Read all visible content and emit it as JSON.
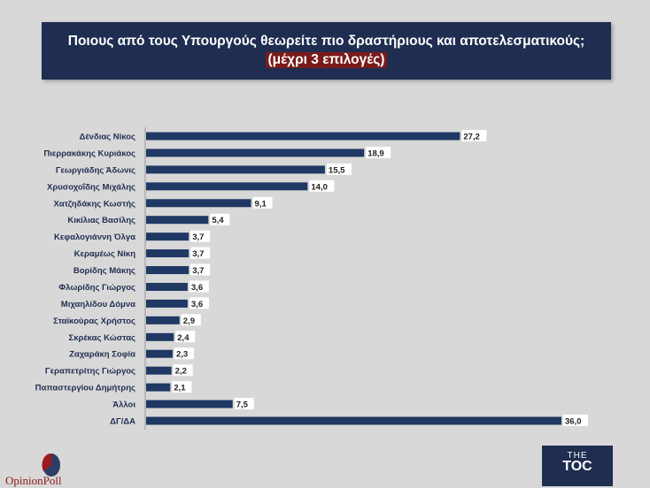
{
  "title": {
    "line1": "Ποιους από τους Υπουργούς θεωρείτε πιο δραστήριους και αποτελεσματικούς;",
    "line2": "(μέχρι 3 επιλογές)"
  },
  "colors": {
    "bar": "#1f3864",
    "title_bg": "#1f2d50",
    "highlight": "#7a1a1a",
    "background": "#d8d8d8"
  },
  "chart_data": {
    "type": "bar",
    "orientation": "horizontal",
    "categories": [
      "Δένδιας Νίκος",
      "Πιερρακάκης Κυριάκος",
      "Γεωργιάδης Άδωνις",
      "Χρυσοχοΐδης Μιχάλης",
      "Χατζηδάκης Κωστής",
      "Κικίλιας Βασίλης",
      "Κεφαλογιάννη Όλγα",
      "Κεραμέως Νίκη",
      "Βορίδης Μάκης",
      "Φλωρίδης Γιώργος",
      "Μιχαηλίδου Δόμνα",
      "Σταϊκούρας Χρήστος",
      "Σκρέκας Κώστας",
      "Ζαχαράκη Σοφία",
      "Γεραπετρίτης Γιώργος",
      "Παπαστεργίου Δημήτρης",
      "Άλλοι",
      "ΔΓ/ΔΑ"
    ],
    "values": [
      27.2,
      18.9,
      15.5,
      14.0,
      9.1,
      5.4,
      3.7,
      3.7,
      3.7,
      3.6,
      3.6,
      2.9,
      2.4,
      2.3,
      2.2,
      2.1,
      7.5,
      36.0
    ],
    "value_labels": [
      "27,2",
      "18,9",
      "15,5",
      "14,0",
      "9,1",
      "5,4",
      "3,7",
      "3,7",
      "3,7",
      "3,6",
      "3,6",
      "2,9",
      "2,4",
      "2,3",
      "2,2",
      "2,1",
      "7,5",
      "36,0"
    ],
    "xlim": [
      0,
      36
    ],
    "grid": false
  },
  "logos": {
    "left": "OpinionPoll",
    "right_top": "THE",
    "right_main": "TOC"
  }
}
